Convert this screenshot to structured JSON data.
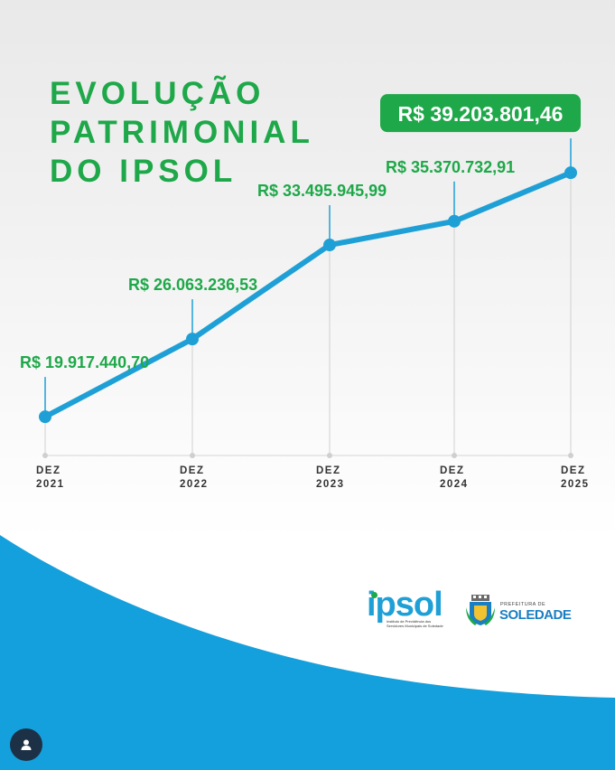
{
  "title_lines": [
    "EVOLUÇÃO",
    "PATRIMONIAL",
    "DO IPSOL"
  ],
  "chart_data": {
    "type": "line",
    "x_labels": [
      [
        "DEZ",
        "2021"
      ],
      [
        "DEZ",
        "2022"
      ],
      [
        "DEZ",
        "2023"
      ],
      [
        "DEZ",
        "2024"
      ],
      [
        "DEZ",
        "2025"
      ]
    ],
    "values": [
      19917440.7,
      26063236.53,
      33495945.99,
      35370732.91,
      39203801.46
    ],
    "value_labels": [
      "R$ 19.917.440,70",
      "R$ 26.063.236,53",
      "R$ 33.495.945,99",
      "R$ 35.370.732,91",
      "R$ 39.203.801,46"
    ],
    "highlight_index": 4,
    "grid": false
  },
  "colors": {
    "accent_green": "#1ea849",
    "line_blue": "#1ea0d6",
    "wave_blue": "#14a0dc"
  },
  "logos": {
    "ipsol_word": "ipsol",
    "ipsol_subtitle": "Instituto de Previdência dos Servidores Municipais de Soledade",
    "prefeitura_small": "PREFEITURA DE",
    "prefeitura_name": "SOLEDADE"
  },
  "icons": {
    "profile": "user-icon"
  }
}
